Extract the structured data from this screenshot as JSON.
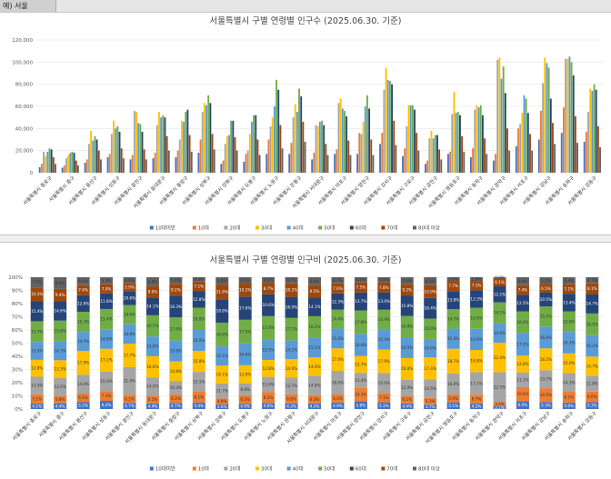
{
  "sheet_cell": "예) 서울",
  "chart_data": [
    {
      "type": "bar",
      "title": "서울특별시 구별 연령별 인구수 (2025.06.30. 기준)",
      "ylim": [
        0,
        120000
      ],
      "yticks": [
        "0",
        "20,000",
        "40,000",
        "60,000",
        "80,000",
        "100,000",
        "120,000"
      ],
      "grid": true,
      "legend": "bottom",
      "categories": [
        "서울특별시 종로구",
        "서울특별시 중구",
        "서울특별시 용산구",
        "서울특별시 성동구",
        "서울특별시 광진구",
        "서울특별시 동대문구",
        "서울특별시 중랑구",
        "서울특별시 성북구",
        "서울특별시 강북구",
        "서울특별시 도봉구",
        "서울특별시 노원구",
        "서울특별시 은평구",
        "서울특별시 서대문구",
        "서울특별시 마포구",
        "서울특별시 양천구",
        "서울특별시 강서구",
        "서울특별시 구로구",
        "서울특별시 금천구",
        "서울특별시 영등포구",
        "서울특별시 동작구",
        "서울특별시 관악구",
        "서울특별시 서초구",
        "서울특별시 강남구",
        "서울특별시 송파구",
        "서울특별시 강동구"
      ],
      "series": [
        {
          "name": "10대미만",
          "values": [
            5000,
            4500,
            9000,
            14000,
            12000,
            13000,
            14000,
            18000,
            8000,
            10000,
            17000,
            17000,
            12000,
            17000,
            17000,
            26000,
            15000,
            8000,
            17000,
            14000,
            11000,
            24000,
            30000,
            36000,
            28000
          ]
        },
        {
          "name": "10대",
          "values": [
            8000,
            6500,
            12000,
            17000,
            16000,
            18000,
            20000,
            30000,
            11000,
            17000,
            30000,
            27000,
            18000,
            21000,
            36000,
            36000,
            22000,
            11000,
            19000,
            22000,
            17000,
            40000,
            56000,
            59000,
            37000
          ]
        },
        {
          "name": "20대",
          "values": [
            19000,
            13000,
            26000,
            35000,
            56000,
            43000,
            30000,
            55000,
            26000,
            20000,
            42000,
            50000,
            43000,
            63000,
            35000,
            75000,
            42000,
            31000,
            53000,
            57000,
            102000,
            44000,
            81000,
            103000,
            55000
          ]
        },
        {
          "name": "30대",
          "values": [
            15000,
            16000,
            38000,
            47000,
            55000,
            55000,
            47000,
            63000,
            33000,
            35000,
            50000,
            62000,
            42000,
            67000,
            46000,
            95000,
            61000,
            38000,
            73000,
            61000,
            104000,
            54000,
            104000,
            103000,
            76000
          ]
        },
        {
          "name": "40대",
          "values": [
            19000,
            18000,
            29000,
            40000,
            45000,
            50000,
            46000,
            61000,
            34000,
            46000,
            60000,
            55000,
            46000,
            58000,
            60000,
            84000,
            61000,
            31000,
            54000,
            59000,
            85000,
            70000,
            99000,
            105000,
            74000
          ]
        },
        {
          "name": "50대",
          "values": [
            22000,
            19000,
            33000,
            42000,
            44000,
            52000,
            55000,
            70000,
            47000,
            52000,
            84000,
            76000,
            47000,
            56000,
            70000,
            83000,
            61000,
            34000,
            55000,
            61000,
            96000,
            67000,
            95000,
            100000,
            80000
          ]
        },
        {
          "name": "60대",
          "values": [
            21000,
            18000,
            30000,
            37000,
            37000,
            50000,
            57000,
            63000,
            47000,
            52000,
            75000,
            69000,
            43000,
            51000,
            58000,
            80000,
            57000,
            34000,
            52000,
            52000,
            72000,
            54000,
            67000,
            88000,
            75000
          ]
        },
        {
          "name": "70대",
          "values": [
            14000,
            11000,
            20000,
            22000,
            21000,
            33000,
            34000,
            35000,
            32000,
            30000,
            43000,
            46000,
            26000,
            29000,
            30000,
            47000,
            36000,
            21000,
            33000,
            31000,
            40000,
            35000,
            45000,
            51000,
            42000
          ]
        },
        {
          "name": "80대 이상",
          "values": [
            8000,
            6500,
            12000,
            13000,
            12000,
            20000,
            19000,
            21000,
            20000,
            16000,
            22000,
            28000,
            16000,
            16000,
            16000,
            25000,
            20000,
            12000,
            19000,
            17000,
            20000,
            20000,
            26000,
            27000,
            23000
          ]
        }
      ]
    },
    {
      "type": "bar",
      "stacked": "percent",
      "title": "서울특별시 구별 연령별 인구비 (2025.06.30. 기준)",
      "ylim": [
        0,
        100
      ],
      "yticks": [
        "0%",
        "10%",
        "20%",
        "30%",
        "40%",
        "50%",
        "60%",
        "70%",
        "80%",
        "90%",
        "100%"
      ],
      "grid": true,
      "legend": "bottom",
      "categories": [
        "서울특별시 종로구",
        "서울특별시 중구",
        "서울특별시 용산구",
        "서울특별시 성동구",
        "서울특별시 광진구",
        "서울특별시 동대문구",
        "서울특별시 중랑구",
        "서울특별시 성북구",
        "서울특별시 강북구",
        "서울특별시 도봉구",
        "서울특별시 노원구",
        "서울특별시 은평구",
        "서울특별시 서대문구",
        "서울특별시 마포구",
        "서울특별시 양천구",
        "서울특별시 강서구",
        "서울특별시 구로구",
        "서울특별시 금천구",
        "서울특별시 영등포구",
        "서울특별시 동작구",
        "서울특별시 관악구",
        "서울특별시 서초구",
        "서울특별시 강남구",
        "서울특별시 송파구",
        "서울특별시 강동구"
      ],
      "series": [
        {
          "name": "10대미만",
          "values": [
            4.1,
            4.4,
            5.2,
            6.2,
            4.7,
            4.4,
            4.7,
            5.0,
            3.6,
            4.0,
            4.6,
            4.3,
            4.2,
            4.9,
            5.8,
            5.1,
            4.4,
            3.7,
            5.1,
            4.2,
            2.1,
            6.0,
            5.3,
            5.0,
            5.3
          ]
        },
        {
          "name": "10대",
          "values": [
            7.1,
            5.8,
            6.5,
            7.3,
            6.1,
            6.1,
            6.3,
            8.1,
            4.9,
            6.5,
            8.2,
            6.8,
            6.3,
            6.1,
            10.3,
            7.1,
            6.1,
            5.1,
            5.9,
            6.7,
            3.3,
            10.6,
            10.5,
            8.1,
            8.0
          ]
        },
        {
          "name": "20대",
          "values": [
            13.3,
            13.5,
            14.4,
            15.0,
            21.0,
            14.5,
            10.3,
            15.1,
            11.7,
            8.8,
            11.6,
            12.7,
            14.6,
            18.0,
            11.4,
            15.0,
            12.9,
            14.5,
            16.0,
            17.1,
            22.5,
            11.1,
            13.7,
            14.1,
            11.8
          ]
        },
        {
          "name": "30대",
          "values": [
            12.8,
            13.3,
            17.9,
            17.2,
            17.7,
            16.6,
            14.8,
            15.8,
            14.1,
            13.9,
            12.8,
            14.0,
            14.0,
            17.0,
            12.7,
            17.9,
            16.8,
            17.4,
            18.7,
            16.8,
            22.4,
            12.8,
            16.5,
            15.0,
            14.7
          ]
        },
        {
          "name": "40대",
          "values": [
            13.6,
            14.3,
            14.5,
            14.8,
            14.8,
            15.6,
            15.8,
            16.0,
            15.1,
            16.6,
            15.5,
            14.2,
            15.1,
            15.0,
            16.8,
            15.3,
            16.5,
            14.6,
            15.3,
            16.0,
            14.6,
            17.2,
            16.6,
            16.3,
            16.2
          ]
        },
        {
          "name": "50대",
          "values": [
            15.7,
            15.8,
            15.3,
            15.4,
            14.6,
            16.7,
            17.6,
            16.8,
            18.6,
            17.9,
            17.8,
            17.1,
            16.2,
            14.4,
            17.8,
            14.9,
            16.8,
            16.0,
            14.7,
            16.0,
            16.1,
            16.4,
            15.2,
            15.6,
            16.5
          ]
        },
        {
          "name": "60대",
          "values": [
            15.4,
            14.6,
            12.6,
            11.8,
            10.6,
            14.1,
            16.3,
            12.8,
            18.6,
            17.6,
            16.6,
            16.0,
            14.1,
            12.3,
            13.7,
            13.0,
            15.8,
            16.4,
            13.8,
            13.3,
            12.1,
            12.5,
            10.5,
            13.4,
            14.7
          ]
        },
        {
          "name": "70대",
          "values": [
            10.3,
            9.4,
            7.6,
            7.0,
            5.9,
            9.0,
            9.2,
            7.1,
            11.6,
            10.2,
            8.7,
            10.2,
            9.5,
            7.6,
            7.5,
            7.8,
            9.2,
            10.0,
            7.7,
            7.1,
            6.1,
            7.4,
            6.5,
            7.1,
            8.1
          ]
        },
        {
          "name": "80대 이상",
          "values": [
            7.7,
            8.9,
            6.0,
            5.3,
            4.6,
            6.9,
            5.0,
            3.3,
            5.8,
            4.5,
            4.2,
            4.7,
            6.0,
            4.7,
            4.0,
            3.9,
            5.5,
            6.3,
            2.8,
            2.8,
            0.8,
            6.0,
            5.2,
            5.4,
            4.7
          ]
        }
      ]
    }
  ],
  "colors": [
    "#4472c4",
    "#ed7d31",
    "#a5a5a5",
    "#ffc000",
    "#5b9bd5",
    "#70ad47",
    "#264478",
    "#9e480e",
    "#636363"
  ]
}
